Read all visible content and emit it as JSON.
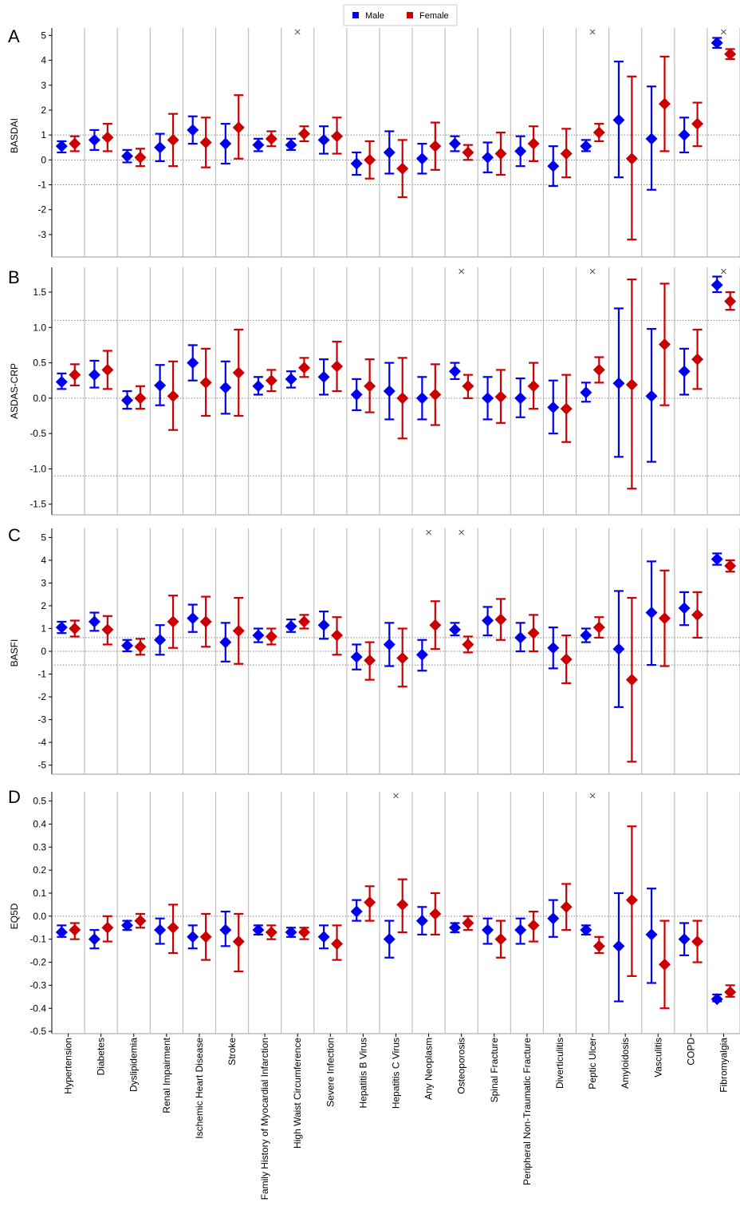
{
  "legend": {
    "position": "top-center",
    "entries": [
      {
        "label": "Male",
        "color": "#0000EE"
      },
      {
        "label": "Female",
        "color": "#CC0000"
      }
    ]
  },
  "colors": {
    "male": "#0000EE",
    "female": "#CC0000",
    "divider": "#BFBFBF",
    "reference": "#888888"
  },
  "categories": [
    "Hypertension",
    "Diabetes",
    "Dyslipidemia",
    "Renal Impairment",
    "Ischemic Heart Disease",
    "Stroke",
    "Family History of Myocardial Infarction",
    "High Waist Circumference",
    "Severe Infection",
    "Hepatitis B Virus",
    "Hepatitis C Virus",
    "Any Neoplasm",
    "Osteoporosis",
    "Spinal Fracture",
    "Peripheral Non-Traumatic Fracture",
    "Diverticulitis",
    "Peptic Ulcer",
    "Amyloidosis",
    "Vasculitis",
    "COPD",
    "Fibromyalgia"
  ],
  "chart_data": [
    {
      "type": "scatter",
      "panel_letter": "A",
      "ylabel": "BASDAI",
      "ylim": [
        -3.9,
        5.3
      ],
      "yticks": [
        -3,
        -2,
        -1,
        0,
        1,
        2,
        3,
        4,
        5
      ],
      "reference_lines": [
        -1,
        0,
        1
      ],
      "significance_marks": [
        7,
        16,
        20
      ],
      "series": [
        {
          "name": "Male",
          "values": [
            0.55,
            0.8,
            0.15,
            0.5,
            1.2,
            0.65,
            0.6,
            0.6,
            0.8,
            -0.15,
            0.3,
            0.05,
            0.65,
            0.1,
            0.35,
            -0.25,
            0.55,
            1.6,
            0.85,
            1.0,
            4.7
          ],
          "lower": [
            0.3,
            0.4,
            -0.1,
            -0.05,
            0.65,
            -0.15,
            0.35,
            0.4,
            0.25,
            -0.6,
            -0.55,
            -0.55,
            0.35,
            -0.5,
            -0.25,
            -1.05,
            0.35,
            -0.7,
            -1.2,
            0.3,
            4.5
          ],
          "upper": [
            0.75,
            1.2,
            0.4,
            1.05,
            1.75,
            1.45,
            0.85,
            0.85,
            1.35,
            0.3,
            1.15,
            0.65,
            0.95,
            0.7,
            0.95,
            0.55,
            0.8,
            3.95,
            2.95,
            1.7,
            4.9
          ]
        },
        {
          "name": "Female",
          "values": [
            0.65,
            0.9,
            0.1,
            0.8,
            0.7,
            1.3,
            0.85,
            1.05,
            0.95,
            0.0,
            -0.35,
            0.55,
            0.3,
            0.25,
            0.65,
            0.25,
            1.1,
            0.05,
            2.25,
            1.45,
            4.25
          ],
          "lower": [
            0.35,
            0.35,
            -0.25,
            -0.25,
            -0.3,
            0.05,
            0.55,
            0.75,
            0.25,
            -0.75,
            -1.5,
            -0.4,
            0.0,
            -0.6,
            -0.05,
            -0.7,
            0.75,
            -3.2,
            0.35,
            0.55,
            4.05
          ],
          "upper": [
            0.95,
            1.45,
            0.45,
            1.85,
            1.7,
            2.6,
            1.15,
            1.35,
            1.7,
            0.75,
            0.8,
            1.5,
            0.6,
            1.1,
            1.35,
            1.25,
            1.45,
            3.35,
            4.15,
            2.3,
            4.45
          ]
        }
      ]
    },
    {
      "type": "scatter",
      "panel_letter": "B",
      "ylabel": "ASDAS-CRP",
      "ylim": [
        -1.65,
        1.85
      ],
      "yticks": [
        -1.5,
        -1.0,
        -0.5,
        0.0,
        0.5,
        1.0,
        1.5
      ],
      "ytick_labels": [
        "-1.5",
        "-1.0",
        "-0.5",
        "0.0",
        "0.5",
        "1.0",
        "1.5"
      ],
      "reference_lines": [
        -1.1,
        0,
        1.1
      ],
      "significance_marks": [
        12,
        16,
        20
      ],
      "series": [
        {
          "name": "Male",
          "values": [
            0.23,
            0.33,
            -0.03,
            0.18,
            0.5,
            0.15,
            0.17,
            0.27,
            0.3,
            0.05,
            0.1,
            0.0,
            0.38,
            0.0,
            0.0,
            -0.13,
            0.08,
            0.21,
            0.03,
            0.38,
            1.6
          ],
          "lower": [
            0.13,
            0.15,
            -0.15,
            -0.1,
            0.25,
            -0.22,
            0.05,
            0.15,
            0.05,
            -0.17,
            -0.3,
            -0.3,
            0.27,
            -0.3,
            -0.27,
            -0.5,
            -0.05,
            -0.83,
            -0.9,
            0.05,
            1.5
          ],
          "upper": [
            0.35,
            0.53,
            0.1,
            0.47,
            0.75,
            0.52,
            0.3,
            0.38,
            0.55,
            0.27,
            0.5,
            0.3,
            0.5,
            0.3,
            0.28,
            0.25,
            0.22,
            1.27,
            0.98,
            0.7,
            1.72
          ]
        },
        {
          "name": "Female",
          "values": [
            0.33,
            0.4,
            0.0,
            0.03,
            0.22,
            0.36,
            0.25,
            0.43,
            0.45,
            0.17,
            0.0,
            0.05,
            0.17,
            0.02,
            0.17,
            -0.15,
            0.4,
            0.19,
            0.76,
            0.55,
            1.37
          ],
          "lower": [
            0.18,
            0.13,
            -0.15,
            -0.45,
            -0.25,
            -0.25,
            0.1,
            0.3,
            0.1,
            -0.2,
            -0.57,
            -0.38,
            0.0,
            -0.35,
            -0.15,
            -0.62,
            0.22,
            -1.28,
            -0.1,
            0.13,
            1.25
          ],
          "upper": [
            0.48,
            0.67,
            0.17,
            0.52,
            0.7,
            0.97,
            0.4,
            0.57,
            0.8,
            0.55,
            0.57,
            0.48,
            0.33,
            0.4,
            0.5,
            0.33,
            0.58,
            1.68,
            1.62,
            0.97,
            1.5
          ]
        }
      ]
    },
    {
      "type": "scatter",
      "panel_letter": "C",
      "ylabel": "BASFI",
      "ylim": [
        -5.4,
        5.4
      ],
      "yticks": [
        -5,
        -4,
        -3,
        -2,
        -1,
        0,
        1,
        2,
        3,
        4,
        5
      ],
      "reference_lines": [
        -0.6,
        0,
        0.6
      ],
      "significance_marks": [
        11,
        12
      ],
      "series": [
        {
          "name": "Male",
          "values": [
            1.05,
            1.3,
            0.25,
            0.5,
            1.45,
            0.4,
            0.7,
            1.1,
            1.15,
            -0.25,
            0.3,
            -0.15,
            0.95,
            1.35,
            0.6,
            0.15,
            0.7,
            0.1,
            1.7,
            1.9,
            4.05
          ],
          "lower": [
            0.8,
            0.9,
            0.0,
            -0.15,
            0.85,
            -0.45,
            0.4,
            0.85,
            0.55,
            -0.8,
            -0.65,
            -0.85,
            0.7,
            0.7,
            0.0,
            -0.75,
            0.4,
            -2.45,
            -0.6,
            1.15,
            3.8
          ],
          "upper": [
            1.3,
            1.7,
            0.5,
            1.15,
            2.05,
            1.25,
            1.0,
            1.4,
            1.75,
            0.3,
            1.25,
            0.5,
            1.25,
            1.95,
            1.25,
            1.05,
            1.0,
            2.65,
            3.95,
            2.6,
            4.3
          ]
        },
        {
          "name": "Female",
          "values": [
            1.0,
            0.95,
            0.2,
            1.3,
            1.3,
            0.9,
            0.65,
            1.3,
            0.7,
            -0.4,
            -0.3,
            1.15,
            0.3,
            1.4,
            0.8,
            -0.35,
            1.05,
            -1.25,
            1.45,
            1.6,
            3.75
          ],
          "lower": [
            0.65,
            0.3,
            -0.15,
            0.15,
            0.2,
            -0.55,
            0.3,
            1.0,
            -0.15,
            -1.25,
            -1.55,
            0.1,
            -0.05,
            0.5,
            0.0,
            -1.4,
            0.6,
            -4.85,
            -0.65,
            0.6,
            3.5
          ],
          "upper": [
            1.35,
            1.55,
            0.55,
            2.45,
            2.4,
            2.35,
            1.0,
            1.6,
            1.5,
            0.4,
            1.0,
            2.2,
            0.65,
            2.3,
            1.6,
            0.7,
            1.5,
            2.35,
            3.55,
            2.6,
            4.0
          ]
        }
      ]
    },
    {
      "type": "scatter",
      "panel_letter": "D",
      "ylabel": "EQ5D",
      "ylim": [
        -0.51,
        0.54
      ],
      "yticks": [
        -0.5,
        -0.4,
        -0.3,
        -0.2,
        -0.1,
        0.0,
        0.1,
        0.2,
        0.3,
        0.4,
        0.5
      ],
      "ytick_labels": [
        "-0.5",
        "-0.4",
        "-0.3",
        "-0.2",
        "-0.1",
        "0.0",
        "0.1",
        "0.2",
        "0.3",
        "0.4",
        "0.5"
      ],
      "reference_lines": [
        0
      ],
      "significance_marks": [
        10,
        16
      ],
      "series": [
        {
          "name": "Male",
          "values": [
            -0.07,
            -0.1,
            -0.04,
            -0.06,
            -0.09,
            -0.06,
            -0.06,
            -0.07,
            -0.09,
            0.02,
            -0.1,
            -0.02,
            -0.05,
            -0.06,
            -0.06,
            -0.01,
            -0.06,
            -0.13,
            -0.08,
            -0.1,
            -0.36
          ],
          "lower": [
            -0.09,
            -0.14,
            -0.06,
            -0.12,
            -0.14,
            -0.13,
            -0.08,
            -0.09,
            -0.14,
            -0.02,
            -0.18,
            -0.08,
            -0.07,
            -0.12,
            -0.12,
            -0.09,
            -0.08,
            -0.37,
            -0.29,
            -0.17,
            -0.37
          ],
          "upper": [
            -0.04,
            -0.06,
            -0.02,
            -0.01,
            -0.04,
            0.02,
            -0.04,
            -0.05,
            -0.04,
            0.07,
            -0.02,
            0.04,
            -0.03,
            -0.01,
            -0.01,
            0.07,
            -0.04,
            0.1,
            0.12,
            -0.03,
            -0.34
          ]
        },
        {
          "name": "Female",
          "values": [
            -0.06,
            -0.05,
            -0.02,
            -0.05,
            -0.09,
            -0.11,
            -0.07,
            -0.07,
            -0.12,
            0.06,
            0.05,
            0.01,
            -0.03,
            -0.1,
            -0.04,
            0.04,
            -0.13,
            0.07,
            -0.21,
            -0.11,
            -0.33
          ],
          "lower": [
            -0.1,
            -0.11,
            -0.05,
            -0.16,
            -0.19,
            -0.24,
            -0.1,
            -0.1,
            -0.19,
            -0.02,
            -0.07,
            -0.08,
            -0.06,
            -0.18,
            -0.11,
            -0.06,
            -0.16,
            -0.26,
            -0.4,
            -0.2,
            -0.35
          ],
          "upper": [
            -0.03,
            0.0,
            0.01,
            0.05,
            0.01,
            0.01,
            -0.04,
            -0.05,
            -0.04,
            0.13,
            0.16,
            0.1,
            0.0,
            -0.02,
            0.02,
            0.14,
            -0.09,
            0.39,
            -0.02,
            -0.02,
            -0.3
          ]
        }
      ]
    }
  ]
}
